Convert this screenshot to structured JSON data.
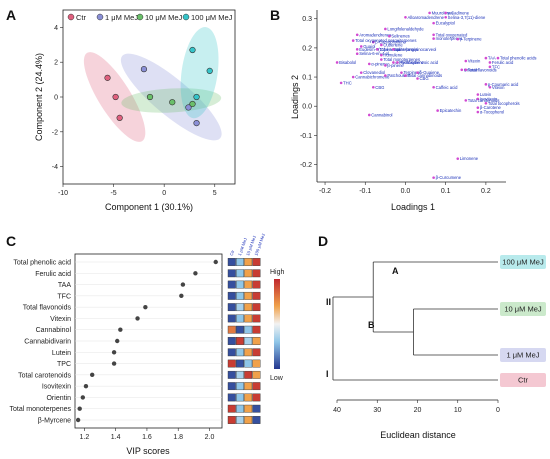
{
  "panels": {
    "a": "A",
    "b": "B",
    "c": "C",
    "d": "D"
  },
  "pca": {
    "legend": [
      "Ctr",
      "1 μM MeJ",
      "10 μM MeJ",
      "100 μM MeJ"
    ],
    "xlabel": "Component 1 (30.1%)",
    "ylabel": "Component 2 (24.4%)",
    "xticks": [
      "-10",
      "-5",
      "0",
      "5"
    ],
    "yticks": [
      "-4",
      "-2",
      "0",
      "2",
      "4"
    ]
  },
  "loadings": {
    "xlabel": "Loadings 1",
    "ylabel": "Loadings 2",
    "xticks": [
      "-0.2",
      "-0.1",
      "0.0",
      "0.1",
      "0.2"
    ],
    "yticks": [
      "-0.2",
      "-0.1",
      "0.0",
      "0.1",
      "0.2",
      "0.3"
    ]
  },
  "vip": {
    "xlabel": "VIP scores",
    "xticks": [
      "1.2",
      "1.4",
      "1.6",
      "1.8",
      "2.0"
    ],
    "col_labels": [
      "Ctr",
      "1 μM MeJ",
      "10 μM MeJ",
      "100 μM MeJ"
    ],
    "scale_high": "High",
    "scale_low": "Low"
  },
  "dendro": {
    "xlabel": "Euclidean distance",
    "xticks": [
      "40",
      "30",
      "20",
      "10",
      "0"
    ],
    "labels": [
      "100 μM MeJ",
      "10 μM MeJ",
      "1 μM MeJ",
      "Ctr"
    ],
    "nodes": {
      "a": "A",
      "b": "B",
      "ii": "II",
      "i": "I"
    }
  },
  "colors": {
    "ctr": "#e0607e",
    "um1": "#8a8fd6",
    "um10": "#6abf6a",
    "um100": "#35c4c9",
    "loading_dot": "#d24bd2",
    "loading_text": "#1a2fb8"
  },
  "chart_data": [
    {
      "type": "scatter",
      "title": "",
      "xlabel": "Component 1 (30.1%)",
      "ylabel": "Component 2 (24.4%)",
      "xlim": [
        -10,
        7
      ],
      "ylim": [
        -5,
        5
      ],
      "series": [
        {
          "name": "Ctr",
          "points": [
            [
              -5.6,
              1.1
            ],
            [
              -4.4,
              -1.2
            ],
            [
              -4.8,
              0.0
            ]
          ]
        },
        {
          "name": "1 μM MeJ",
          "points": [
            [
              -2.0,
              1.6
            ],
            [
              2.4,
              -0.6
            ],
            [
              3.2,
              -1.5
            ]
          ]
        },
        {
          "name": "10 μM MeJ",
          "points": [
            [
              -1.4,
              0.0
            ],
            [
              0.8,
              -0.3
            ],
            [
              2.8,
              -0.4
            ]
          ]
        },
        {
          "name": "100 μM MeJ",
          "points": [
            [
              2.8,
              2.7
            ],
            [
              3.2,
              0.0
            ],
            [
              4.5,
              1.5
            ]
          ]
        }
      ]
    },
    {
      "type": "scatter",
      "title": "",
      "xlabel": "Loadings 1",
      "ylabel": "Loadings 2",
      "xlim": [
        -0.22,
        0.25
      ],
      "ylim": [
        -0.26,
        0.33
      ],
      "points": [
        {
          "label": "Muurolenes",
          "x": 0.06,
          "y": 0.32
        },
        {
          "label": "γ-Cadinene",
          "x": 0.1,
          "y": 0.32
        },
        {
          "label": "Alloaromadendrene",
          "x": 0.0,
          "y": 0.305
        },
        {
          "label": "Selina-3,7(11)-diene",
          "x": 0.1,
          "y": 0.305
        },
        {
          "label": "Eucalyptol",
          "x": 0.07,
          "y": 0.285
        },
        {
          "label": "Longifolenaldehyde",
          "x": -0.05,
          "y": 0.265
        },
        {
          "label": "Aromadendrenes",
          "x": -0.12,
          "y": 0.245
        },
        {
          "label": "Selinenes",
          "x": -0.04,
          "y": 0.24
        },
        {
          "label": "Total oxygenated",
          "x": 0.07,
          "y": 0.245
        },
        {
          "label": "monoterpenes",
          "x": 0.07,
          "y": 0.232
        },
        {
          "label": "β-Caryophyllene",
          "x": -0.08,
          "y": 0.22
        },
        {
          "label": "Total oxygenated sesquiterpenes",
          "x": -0.13,
          "y": 0.225
        },
        {
          "label": "Cubenene",
          "x": -0.06,
          "y": 0.21
        },
        {
          "label": "Guaiol",
          "x": -0.11,
          "y": 0.205
        },
        {
          "label": "Eudesm-7(11)-en-4-ol",
          "x": -0.12,
          "y": 0.195
        },
        {
          "label": "Selina-6-en-4-ol",
          "x": -0.12,
          "y": 0.18
        },
        {
          "label": "Total sesquiterpenes",
          "x": -0.07,
          "y": 0.195
        },
        {
          "label": "Humulene",
          "x": -0.06,
          "y": 0.175
        },
        {
          "label": "trans-longipinocarveol",
          "x": -0.03,
          "y": 0.195
        },
        {
          "label": "γ-Terpinene",
          "x": 0.13,
          "y": 0.23
        },
        {
          "label": "Bisabolol",
          "x": -0.17,
          "y": 0.15
        },
        {
          "label": "Total monoterpenes",
          "x": -0.06,
          "y": 0.16
        },
        {
          "label": "α-Phellandrene",
          "x": -0.03,
          "y": 0.15
        },
        {
          "label": "α-pinene",
          "x": -0.09,
          "y": 0.145
        },
        {
          "label": "β-pinene",
          "x": -0.05,
          "y": 0.14
        },
        {
          "label": "Hydroxybenzoic acid",
          "x": -0.02,
          "y": 0.15
        },
        {
          "label": "Terpineol",
          "x": -0.01,
          "y": 0.115
        },
        {
          "label": "Clovanediol",
          "x": -0.11,
          "y": 0.115
        },
        {
          "label": "δ-Guaiene",
          "x": 0.03,
          "y": 0.115
        },
        {
          "label": "Cannabichromene",
          "x": -0.13,
          "y": 0.1
        },
        {
          "label": "Patchoulene",
          "x": -0.05,
          "y": 0.105
        },
        {
          "label": "Total cannabinoids",
          "x": 0.0,
          "y": 0.105
        },
        {
          "label": "CBG",
          "x": 0.03,
          "y": 0.095
        },
        {
          "label": "THC",
          "x": -0.16,
          "y": 0.08
        },
        {
          "label": "CBG",
          "x": -0.08,
          "y": 0.065
        },
        {
          "label": "Caffeic acid",
          "x": 0.07,
          "y": 0.065
        },
        {
          "label": "Orientin",
          "x": 0.14,
          "y": 0.125
        },
        {
          "label": "TAA",
          "x": 0.2,
          "y": 0.165
        },
        {
          "label": "Total phenolic acids",
          "x": 0.23,
          "y": 0.165
        },
        {
          "label": "Ferulic acid",
          "x": 0.21,
          "y": 0.15
        },
        {
          "label": "TFC",
          "x": 0.21,
          "y": 0.135
        },
        {
          "label": "Vitexin",
          "x": 0.15,
          "y": 0.155
        },
        {
          "label": "Total flavonoids",
          "x": 0.15,
          "y": 0.125
        },
        {
          "label": "p-Coumaric acid",
          "x": 0.2,
          "y": 0.075
        },
        {
          "label": "Vitexin",
          "x": 0.21,
          "y": 0.065
        },
        {
          "label": "Lutein",
          "x": 0.18,
          "y": 0.04
        },
        {
          "label": "Isovitexin",
          "x": 0.18,
          "y": 0.025
        },
        {
          "label": "Total carotenoids",
          "x": 0.15,
          "y": 0.02
        },
        {
          "label": "Total tocopherols",
          "x": 0.2,
          "y": 0.01
        },
        {
          "label": "Epicatechin",
          "x": 0.08,
          "y": -0.015
        },
        {
          "label": "β-Carotene",
          "x": 0.18,
          "y": -0.005
        },
        {
          "label": "α-Tocopherol",
          "x": 0.18,
          "y": -0.02
        },
        {
          "label": "Cannabinol",
          "x": -0.09,
          "y": -0.03
        },
        {
          "label": "Limonene",
          "x": 0.13,
          "y": -0.18
        },
        {
          "label": "β-Curcumene",
          "x": 0.07,
          "y": -0.245
        }
      ]
    },
    {
      "type": "scatter",
      "title": "",
      "xlabel": "VIP scores",
      "xlim": [
        1.14,
        2.08
      ],
      "categories": [
        "Total phenolic acid",
        "Ferulic acid",
        "TAA",
        "TFC",
        "Total flavonoids",
        "Vitexin",
        "Cannabinol",
        "Cannabidivarin",
        "Lutein",
        "TPC",
        "Total carotenoids",
        "Isovitexin",
        "Orientin",
        "Total monoterpenes",
        "β-Myrcene"
      ],
      "values": [
        2.04,
        1.91,
        1.83,
        1.82,
        1.59,
        1.54,
        1.43,
        1.41,
        1.39,
        1.39,
        1.25,
        1.21,
        1.19,
        1.17,
        1.16
      ],
      "heatmap": {
        "columns": [
          "Ctr",
          "1 μM MeJ",
          "10 μM MeJ",
          "100 μM MeJ"
        ],
        "levels": [
          [
            0.05,
            0.3,
            0.7,
            0.95
          ],
          [
            0.05,
            0.3,
            0.7,
            0.95
          ],
          [
            0.05,
            0.3,
            0.7,
            0.95
          ],
          [
            0.05,
            0.3,
            0.7,
            0.95
          ],
          [
            0.05,
            0.35,
            0.7,
            0.95
          ],
          [
            0.05,
            0.3,
            0.7,
            0.95
          ],
          [
            0.8,
            0.05,
            0.3,
            0.95
          ],
          [
            0.05,
            0.95,
            0.35,
            0.7
          ],
          [
            0.05,
            0.3,
            0.7,
            0.95
          ],
          [
            0.95,
            0.05,
            0.3,
            0.7
          ],
          [
            0.05,
            0.35,
            0.95,
            0.7
          ],
          [
            0.05,
            0.3,
            0.7,
            0.95
          ],
          [
            0.05,
            0.3,
            0.7,
            0.95
          ],
          [
            0.95,
            0.3,
            0.7,
            0.05
          ],
          [
            0.95,
            0.35,
            0.7,
            0.05
          ]
        ]
      }
    },
    {
      "type": "dendrogram",
      "title": "",
      "xlabel": "Euclidean distance",
      "xlim": [
        40,
        0
      ],
      "leaves": [
        "100 μM MeJ",
        "10 μM MeJ",
        "1 μM MeJ",
        "Ctr"
      ],
      "merges": [
        {
          "name": "B",
          "children": [
            "10 μM MeJ",
            "1 μM MeJ"
          ],
          "height": 21
        },
        {
          "name": "A",
          "children": [
            "100 μM MeJ",
            "B"
          ],
          "height": 31
        },
        {
          "name": "II/I",
          "children": [
            "A",
            "Ctr"
          ],
          "height": 41
        }
      ]
    }
  ]
}
